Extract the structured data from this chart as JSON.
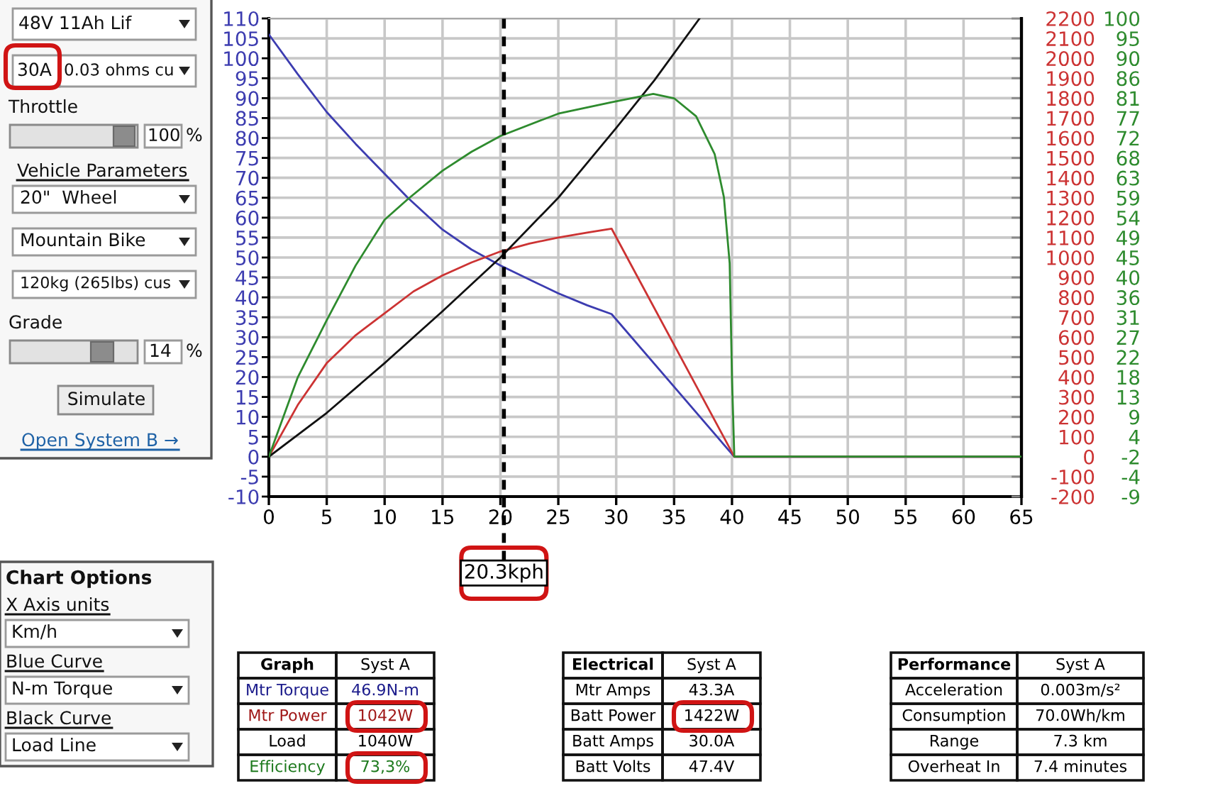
{
  "chart_data": {
    "type": "line",
    "xlim": [
      0,
      65
    ],
    "xticks": [
      0,
      5,
      10,
      15,
      20,
      25,
      30,
      35,
      40,
      45,
      50,
      55,
      60,
      65
    ],
    "ylim": [
      -10,
      110
    ],
    "yticks": [
      -10,
      -5,
      0,
      5,
      10,
      15,
      20,
      25,
      30,
      35,
      40,
      45,
      50,
      55,
      60,
      65,
      70,
      75,
      80,
      85,
      90,
      95,
      100,
      105,
      110
    ],
    "y2lim": [
      -200,
      2200
    ],
    "y2ticks": [
      -200,
      -100,
      0,
      100,
      200,
      300,
      400,
      500,
      600,
      700,
      800,
      900,
      1000,
      1100,
      1200,
      1300,
      1400,
      1500,
      1600,
      1700,
      1800,
      1900,
      2000,
      2100,
      2200
    ],
    "y3lim": [
      -9,
      100
    ],
    "y3ticks": [
      -9,
      -4,
      -2,
      4,
      9,
      13,
      18,
      22,
      27,
      31,
      36,
      40,
      45,
      49,
      54,
      59,
      63,
      68,
      72,
      77,
      81,
      86,
      90,
      95,
      100
    ],
    "grid": true,
    "series": [
      {
        "color": "#3c3cb0",
        "x": [
          0,
          2.5,
          5,
          7.5,
          10,
          12,
          15,
          17.5,
          20,
          22.5,
          25,
          27.5,
          29.6,
          40.2,
          65
        ],
        "values": [
          106,
          96,
          86.5,
          78.5,
          71,
          65,
          57,
          52,
          48,
          44.5,
          41,
          38,
          35.8,
          0,
          0
        ]
      },
      {
        "color": "#cc3333",
        "axis": "y2",
        "x": [
          0,
          2.5,
          5,
          7.5,
          10,
          12.5,
          15,
          17.5,
          20,
          22.5,
          25,
          27.5,
          29.6,
          40.2,
          65
        ],
        "values": [
          0,
          260,
          470,
          610,
          720,
          830,
          910,
          975,
          1030,
          1070,
          1100,
          1125,
          1145,
          0,
          0
        ]
      },
      {
        "color": "#111111",
        "axis": "y2",
        "x": [
          0,
          5,
          10,
          15,
          20,
          25,
          30,
          33.3,
          37.2
        ],
        "values": [
          0,
          220,
          470,
          730,
          1000,
          1300,
          1650,
          1890,
          2200
        ]
      },
      {
        "color": "#2e8b2e",
        "axis": "y3",
        "x": [
          0,
          2.5,
          5,
          7.5,
          10,
          12,
          15,
          17.5,
          20,
          25,
          29.6,
          33.2,
          35,
          36.9,
          38.5,
          39.3,
          39.8,
          40.0,
          40.2,
          65
        ],
        "values": [
          0.1,
          18.2,
          31.2,
          43.7,
          54.1,
          58.8,
          65.3,
          69.6,
          73.2,
          78.3,
          80.9,
          82.8,
          81.8,
          77.7,
          69.1,
          59.3,
          44.2,
          18.2,
          0.1,
          0.1
        ]
      }
    ],
    "ref_lines": [
      {
        "axis": "x",
        "value": 20.3,
        "label": "20.3kph",
        "color": "#000000",
        "line_style": "dashed"
      }
    ],
    "annotations": [
      "48V 11Ah Lif",
      "30A",
      "0.03 ohms cu",
      "Throttle",
      "100",
      "%",
      "Vehicle Parameters",
      "20\"  Wheel",
      "Mountain Bike",
      "120kg (265lbs) cus",
      "Grade",
      "14",
      "%",
      "Simulate",
      "Open System B →",
      "Chart Options",
      "X Axis units",
      "Km/h",
      "Blue Curve",
      "N-m Torque",
      "Black Curve",
      "Load Line",
      "Graph",
      "Syst A",
      "Mtr Torque",
      "46.9N-m",
      "Mtr Power",
      "1042W",
      "Load",
      "1040W",
      "Efficiency",
      "73,3%",
      "Electrical",
      "Syst A",
      "Mtr Amps",
      "43.3A",
      "Batt Power",
      "1422W",
      "Batt Amps",
      "30.0A",
      "Batt Volts",
      "47.4V",
      "Performance",
      "Syst A",
      "Acceleration",
      "0.003m/s²",
      "Consumption",
      "70.0Wh/km",
      "Range",
      "7.3 km",
      "Overheat In",
      "7.4 minutes"
    ]
  }
}
